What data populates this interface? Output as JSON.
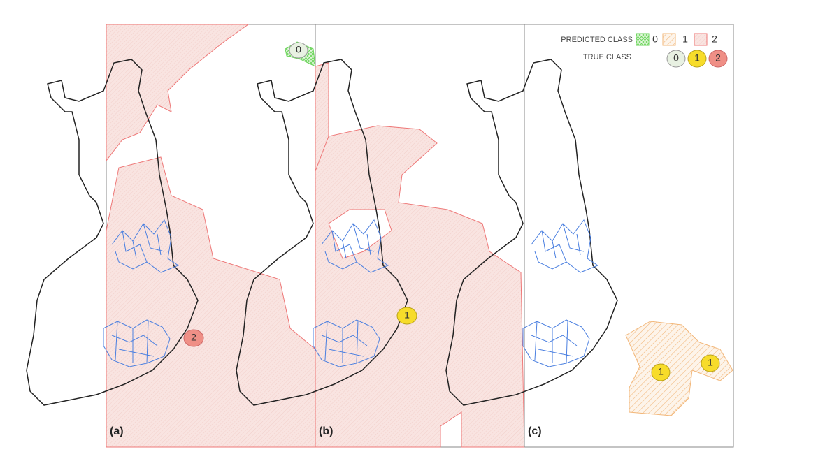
{
  "panels": [
    {
      "label": "(a)",
      "markers": [
        "0",
        "2"
      ]
    },
    {
      "label": "(b)",
      "markers": [
        "1"
      ]
    },
    {
      "label": "(c)",
      "markers": [
        "1",
        "1"
      ]
    }
  ],
  "legend": {
    "predicted_title": "PREDICTED CLASS",
    "predicted": [
      "0",
      "1",
      "2"
    ],
    "true_title": "TRUE CLASS",
    "true": [
      "0",
      "1",
      "2"
    ]
  }
}
